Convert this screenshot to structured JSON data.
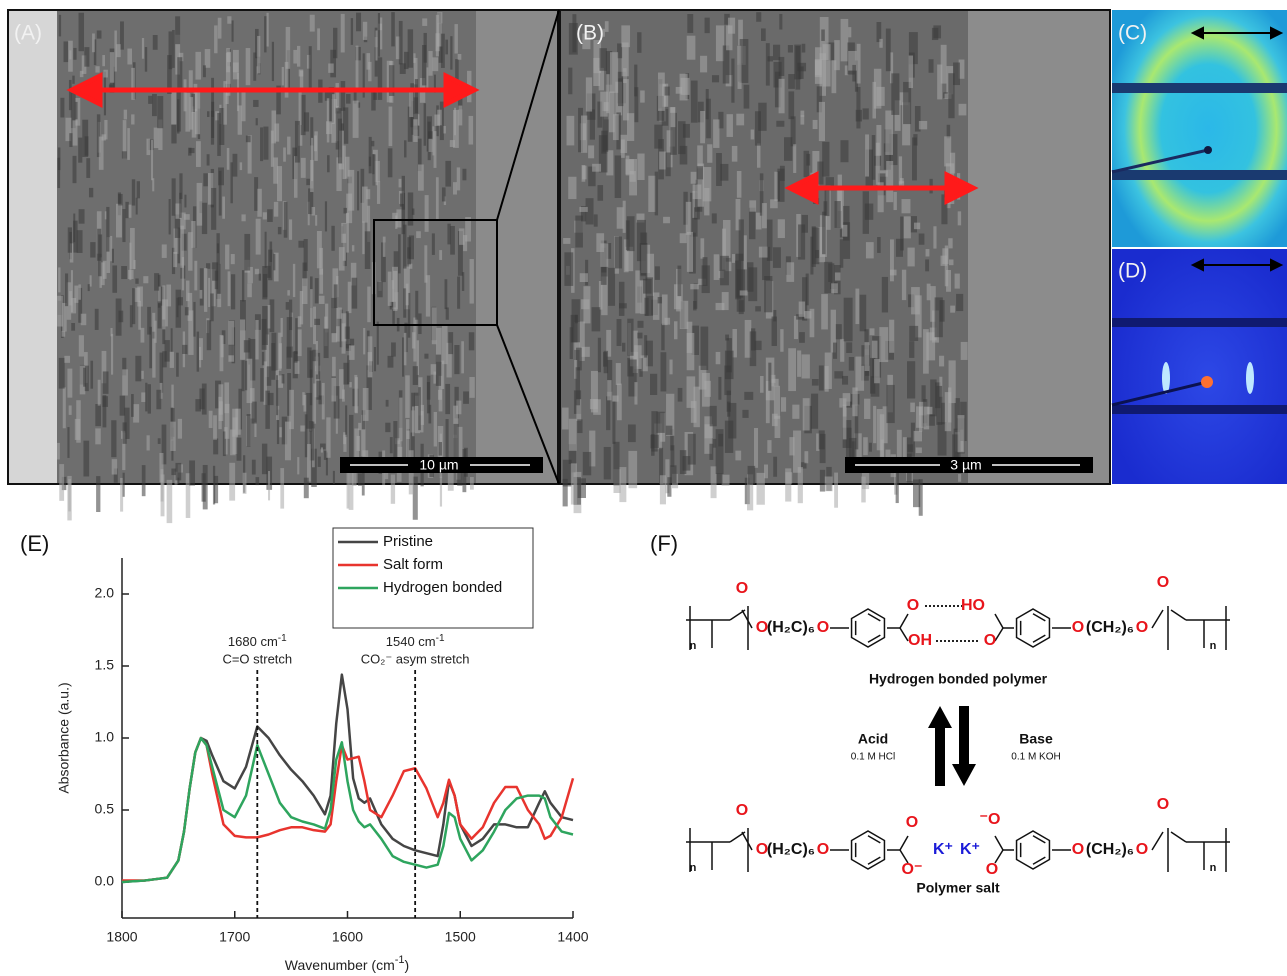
{
  "panels": {
    "a": {
      "label": "(A)",
      "scale_bar": "10 µm"
    },
    "b": {
      "label": "(B)",
      "scale_bar": "3 µm"
    },
    "c": {
      "label": "(C)"
    },
    "d": {
      "label": "(D)"
    }
  },
  "chart_data": {
    "type": "line",
    "panel_label": "(E)",
    "x_label": {
      "text": "Wavenumber (cm",
      "sup": "-1",
      "tail": ")"
    },
    "y_label": "Absorbance (a.u.)",
    "xlim": [
      1800,
      1400
    ],
    "xticks": [
      1800,
      1700,
      1600,
      1500,
      1400
    ],
    "ylim": [
      -0.25,
      2.25
    ],
    "yticks": [
      {
        "value": 0,
        "label": "0.0"
      },
      0.5,
      {
        "value": 1,
        "label": "1.0"
      },
      1.5,
      {
        "value": 2,
        "label": "2.0"
      }
    ],
    "legend": "top-right",
    "x": [
      1800,
      1780,
      1760,
      1750,
      1745,
      1740,
      1735,
      1730,
      1725,
      1720,
      1710,
      1700,
      1690,
      1680,
      1670,
      1660,
      1650,
      1640,
      1630,
      1620,
      1615,
      1610,
      1605,
      1600,
      1595,
      1590,
      1585,
      1580,
      1570,
      1560,
      1550,
      1540,
      1530,
      1520,
      1515,
      1510,
      1505,
      1500,
      1490,
      1480,
      1470,
      1460,
      1450,
      1440,
      1430,
      1425,
      1420,
      1410,
      1400
    ],
    "series": [
      {
        "name": "Pristine",
        "color": "#454545",
        "values": [
          0,
          0.01,
          0.03,
          0.15,
          0.35,
          0.65,
          0.9,
          1,
          0.98,
          0.88,
          0.7,
          0.65,
          0.8,
          1.08,
          1,
          0.88,
          0.78,
          0.7,
          0.6,
          0.47,
          0.6,
          1.1,
          1.44,
          1.2,
          0.72,
          0.58,
          0.55,
          0.58,
          0.4,
          0.3,
          0.25,
          0.22,
          0.2,
          0.18,
          0.4,
          0.7,
          0.6,
          0.4,
          0.25,
          0.3,
          0.4,
          0.4,
          0.38,
          0.38,
          0.55,
          0.63,
          0.55,
          0.45,
          0.43
        ]
      },
      {
        "name": "Salt form",
        "color": "#e8342e",
        "values": [
          0.01,
          0.01,
          0.03,
          0.15,
          0.35,
          0.65,
          0.9,
          1,
          0.95,
          0.75,
          0.4,
          0.32,
          0.31,
          0.31,
          0.33,
          0.36,
          0.38,
          0.38,
          0.36,
          0.35,
          0.4,
          0.7,
          0.95,
          0.85,
          0.86,
          0.87,
          0.7,
          0.5,
          0.45,
          0.6,
          0.77,
          0.79,
          0.65,
          0.45,
          0.55,
          0.71,
          0.6,
          0.4,
          0.3,
          0.38,
          0.55,
          0.66,
          0.66,
          0.5,
          0.4,
          0.3,
          0.32,
          0.45,
          0.72
        ]
      },
      {
        "name": "Hydrogen bonded",
        "color": "#2ea55e",
        "values": [
          0,
          0.01,
          0.03,
          0.15,
          0.35,
          0.65,
          0.9,
          1,
          0.95,
          0.8,
          0.5,
          0.45,
          0.6,
          0.95,
          0.75,
          0.55,
          0.45,
          0.42,
          0.4,
          0.37,
          0.5,
          0.85,
          0.97,
          0.7,
          0.5,
          0.42,
          0.38,
          0.4,
          0.3,
          0.18,
          0.14,
          0.12,
          0.1,
          0.12,
          0.25,
          0.48,
          0.45,
          0.3,
          0.15,
          0.22,
          0.35,
          0.5,
          0.58,
          0.6,
          0.6,
          0.58,
          0.45,
          0.35,
          0.33
        ]
      }
    ],
    "annotations": [
      {
        "x": 1680,
        "label": "1680 cm",
        "sup": "-1",
        "note": "C=O stretch"
      },
      {
        "x": 1540,
        "label": "1540 cm",
        "sup": "-1",
        "note": "CO₂⁻ asym stretch"
      }
    ]
  },
  "scheme": {
    "panel_label": "(F)",
    "top": {
      "name": "Hydrogen bonded polymer",
      "atoms": [
        {
          "text": "n",
          "color": "#111111"
        },
        {
          "text": "O",
          "color": "#e8141b"
        },
        {
          "text": "O",
          "color": "#e8141b"
        },
        {
          "text": "(H₂C)₆",
          "color": "#111111"
        },
        {
          "text": "O",
          "color": "#e8141b"
        },
        {
          "text": "O",
          "color": "#e8141b"
        },
        {
          "text": "OH",
          "color": "#e8141b"
        },
        {
          "text": "HO",
          "color": "#e8141b"
        },
        {
          "text": "O",
          "color": "#e8141b"
        },
        {
          "text": "O",
          "color": "#e8141b"
        },
        {
          "text": "(CH₂)₆",
          "color": "#111111"
        },
        {
          "text": "O",
          "color": "#e8141b"
        },
        {
          "text": "O",
          "color": "#e8141b"
        },
        {
          "text": "n",
          "color": "#111111"
        }
      ]
    },
    "bottom": {
      "name": "Polymer salt",
      "atoms": [
        {
          "text": "n",
          "color": "#111111"
        },
        {
          "text": "O",
          "color": "#e8141b"
        },
        {
          "text": "O",
          "color": "#e8141b"
        },
        {
          "text": "(H₂C)₆",
          "color": "#111111"
        },
        {
          "text": "O",
          "color": "#e8141b"
        },
        {
          "text": "O",
          "color": "#e8141b"
        },
        {
          "text": "O⁻",
          "color": "#e8141b"
        },
        {
          "text": "K⁺",
          "color": "#1b1bd8"
        },
        {
          "text": "K⁺",
          "color": "#1b1bd8"
        },
        {
          "text": "⁻O",
          "color": "#e8141b"
        },
        {
          "text": "O",
          "color": "#e8141b"
        },
        {
          "text": "O",
          "color": "#e8141b"
        },
        {
          "text": "(CH₂)₆",
          "color": "#111111"
        },
        {
          "text": "O",
          "color": "#e8141b"
        },
        {
          "text": "O",
          "color": "#e8141b"
        },
        {
          "text": "n",
          "color": "#111111"
        }
      ]
    },
    "forward": {
      "reagent": "Acid",
      "conditions": "0.1 M HCl"
    },
    "reverse": {
      "reagent": "Base",
      "conditions": "0.1 M KOH"
    }
  }
}
